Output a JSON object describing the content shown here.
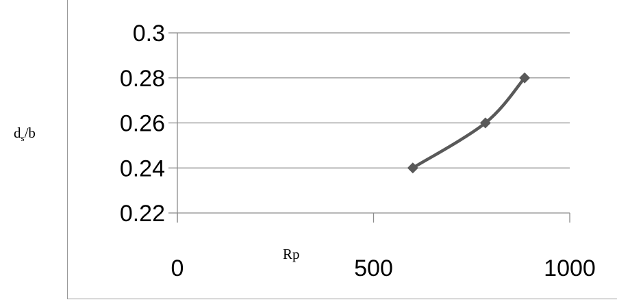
{
  "chart_data": {
    "type": "line",
    "x": [
      600,
      785,
      885
    ],
    "series": [
      {
        "values": [
          0.24,
          0.26,
          0.28
        ],
        "color": "#595959"
      }
    ],
    "xlabel": "Rp",
    "ylabel_main": "d",
    "ylabel_sub": "s",
    "ylabel_tail": "/b",
    "xlim": [
      0,
      1000
    ],
    "ylim": [
      0.22,
      0.3
    ],
    "x_ticks": [
      0,
      500,
      1000
    ],
    "y_ticks": [
      0.22,
      0.24,
      0.26,
      0.28,
      0.3
    ],
    "x_tick_labels": [
      "0",
      "500",
      "1000"
    ],
    "y_tick_labels": [
      "0.22",
      "0.24",
      "0.26",
      "0.28",
      "0.3"
    ],
    "grid": true,
    "marker": "diamond",
    "smooth": true
  }
}
